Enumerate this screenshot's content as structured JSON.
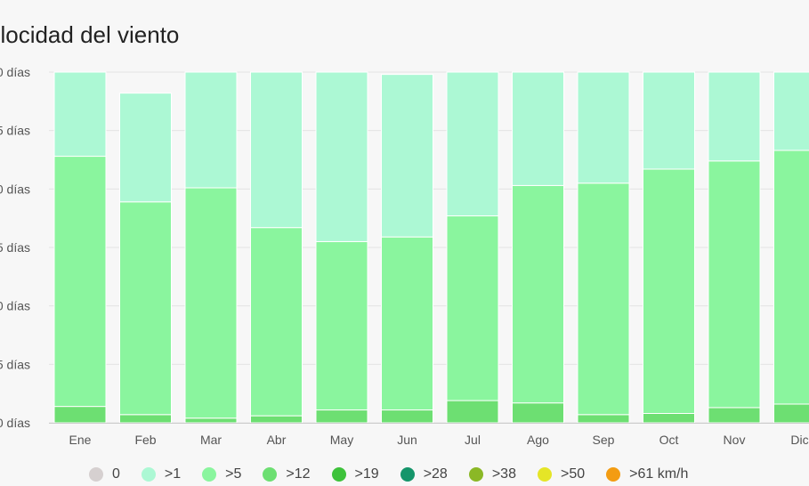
{
  "title": "elocidad del viento",
  "chart_data": {
    "type": "bar",
    "stacked": true,
    "categories": [
      "Ene",
      "Feb",
      "Mar",
      "Abr",
      "May",
      "Jun",
      "Jul",
      "Ago",
      "Sep",
      "Oct",
      "Nov",
      "Dic"
    ],
    "y_tick_labels": [
      "0 días",
      "5 días",
      "0 días",
      "5 días",
      "0 días",
      "5 días",
      "0 días"
    ],
    "ylim": [
      0,
      30
    ],
    "series": [
      {
        "name": ">12",
        "color": "#6ddf72",
        "values": [
          1.4,
          0.7,
          0.4,
          0.6,
          1.1,
          1.1,
          1.9,
          1.7,
          0.7,
          0.8,
          1.3,
          1.6
        ]
      },
      {
        "name": ">5",
        "color": "#8af59e",
        "values": [
          21.4,
          18.2,
          19.7,
          16.1,
          14.4,
          14.8,
          15.8,
          18.6,
          19.8,
          20.9,
          21.1,
          21.7
        ]
      },
      {
        "name": ">1",
        "color": "#acf8d4",
        "values": [
          7.2,
          9.3,
          9.9,
          13.3,
          14.5,
          13.9,
          12.3,
          9.7,
          9.5,
          8.3,
          7.6,
          6.7
        ]
      }
    ],
    "legend": [
      {
        "label": "0",
        "color": "#d6d0d0"
      },
      {
        "label": ">1",
        "color": "#acf8d4"
      },
      {
        "label": ">5",
        "color": "#8af59e"
      },
      {
        "label": ">12",
        "color": "#6ddf72"
      },
      {
        "label": ">19",
        "color": "#3ec23b"
      },
      {
        "label": ">28",
        "color": "#15956a"
      },
      {
        "label": ">38",
        "color": "#8bb826"
      },
      {
        "label": ">50",
        "color": "#e5e527"
      },
      {
        "label": ">61 km/h",
        "color": "#f39c12"
      }
    ],
    "legend_position": "bottom",
    "grid": true
  }
}
